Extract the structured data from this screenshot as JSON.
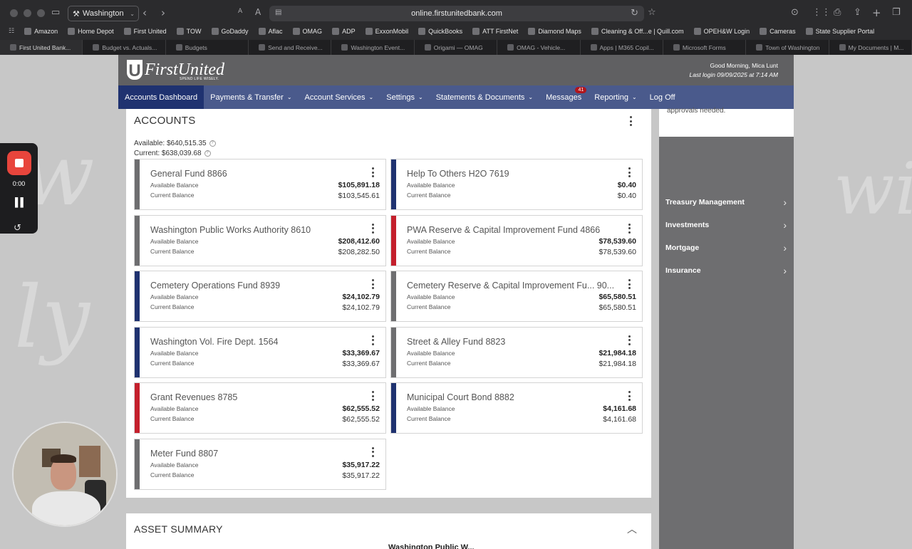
{
  "browser": {
    "tab_group_label": "Washington",
    "url": "online.firstunitedbank.com",
    "bookmarks": [
      "Amazon",
      "Home Depot",
      "First United",
      "TOW",
      "GoDaddy",
      "Aflac",
      "OMAG",
      "ADP",
      "ExxonMobil",
      "QuickBooks",
      "ATT FirstNet",
      "Diamond Maps",
      "Cleaning & Off...e | Quill.com",
      "OPEH&W Login",
      "Cameras",
      "State Supplier Portal"
    ],
    "tabs": [
      "First United Bank...",
      "Budget vs. Actuals...",
      "Budgets",
      "Send and Receive...",
      "Washington Event...",
      "Origami — OMAG",
      "OMAG - Vehicle...",
      "Apps | M365 Copil...",
      "Microsoft Forms",
      "Town of Washington",
      "My Documents | M..."
    ]
  },
  "bank": {
    "logo_text": "FirstUnited",
    "logo_u": "U",
    "tagline": "SPEND LIFE WISELY.",
    "greeting": "Good Morning, Mica Lunt",
    "last_login": "Last login 09/09/2025 at 7:14 AM"
  },
  "nav": {
    "items": [
      {
        "label": "Accounts Dashboard",
        "dropdown": false
      },
      {
        "label": "Payments & Transfer",
        "dropdown": true
      },
      {
        "label": "Account Services",
        "dropdown": true
      },
      {
        "label": "Settings",
        "dropdown": true
      },
      {
        "label": "Statements & Documents",
        "dropdown": true
      },
      {
        "label": "Messages",
        "dropdown": false
      },
      {
        "label": "Reporting",
        "dropdown": true
      },
      {
        "label": "Log Off",
        "dropdown": false
      }
    ],
    "messages_badge": "41"
  },
  "accounts": {
    "title": "ACCOUNTS",
    "available_total": "Available: $640,515.35",
    "current_total": "Current: $638,039.68",
    "available_label": "Available Balance",
    "current_label": "Current Balance",
    "cards": [
      {
        "name": "General Fund 8866",
        "available": "$105,891.18",
        "current": "$103,545.61",
        "color": "#6e6e70"
      },
      {
        "name": "Help To Others H2O 7619",
        "available": "$0.40",
        "current": "$0.40",
        "color": "#1f3270"
      },
      {
        "name": "Washington Public Works Authority 8610",
        "available": "$208,412.60",
        "current": "$208,282.50",
        "color": "#6e6e70"
      },
      {
        "name": "PWA Reserve & Capital Improvement Fund 4866",
        "available": "$78,539.60",
        "current": "$78,539.60",
        "color": "#c41f2c"
      },
      {
        "name": "Cemetery Operations Fund 8939",
        "available": "$24,102.79",
        "current": "$24,102.79",
        "color": "#1f3270"
      },
      {
        "name": "Cemetery Reserve & Capital Improvement Fu...  90...",
        "available": "$65,580.51",
        "current": "$65,580.51",
        "color": "#6e6e70"
      },
      {
        "name": "Washington Vol. Fire Dept. 1564",
        "available": "$33,369.67",
        "current": "$33,369.67",
        "color": "#1f3270"
      },
      {
        "name": "Street & Alley Fund 8823",
        "available": "$21,984.18",
        "current": "$21,984.18",
        "color": "#6e6e70"
      },
      {
        "name": "Grant Revenues 8785",
        "available": "$62,555.52",
        "current": "$62,555.52",
        "color": "#c41f2c"
      },
      {
        "name": "Municipal Court Bond 8882",
        "available": "$4,161.68",
        "current": "$4,161.68",
        "color": "#1f3270"
      },
      {
        "name": "Meter Fund 8807",
        "available": "$35,917.22",
        "current": "$35,917.22",
        "color": "#6e6e70"
      }
    ]
  },
  "sidebar": {
    "note": "approvals needed.",
    "items": [
      "Treasury Management",
      "Investments",
      "Mortgage",
      "Insurance"
    ]
  },
  "asset_summary": {
    "title": "ASSET SUMMARY",
    "partial_label": "Washington Public W..."
  },
  "recorder": {
    "time": "0:00"
  }
}
